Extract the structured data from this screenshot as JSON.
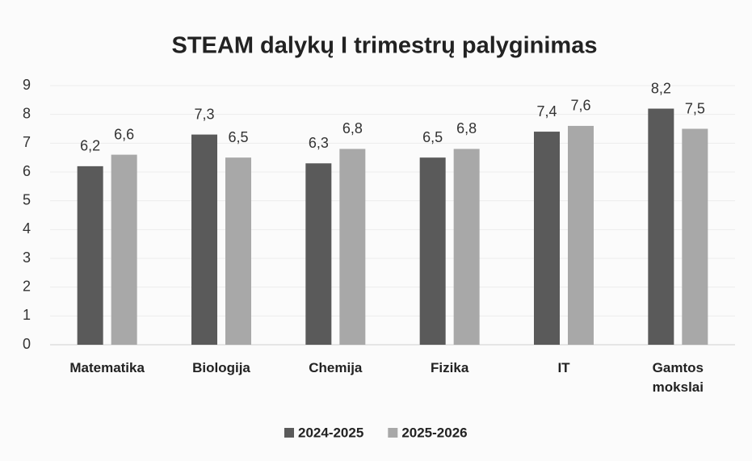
{
  "chart_data": {
    "type": "bar",
    "title": "STEAM dalykų I trimestrų palyginimas",
    "categories": [
      "Matematika",
      "Biologija",
      "Chemija",
      "Fizika",
      "IT",
      "Gamtos mokslai"
    ],
    "series": [
      {
        "name": "2024-2025",
        "color": "#5a5a5a",
        "values": [
          6.2,
          7.3,
          6.3,
          6.5,
          7.4,
          8.2
        ],
        "value_labels": [
          "6,2",
          "7,3",
          "6,3",
          "6,5",
          "7,4",
          "8,2"
        ]
      },
      {
        "name": "2025-2026",
        "color": "#a8a8a8",
        "values": [
          6.6,
          6.5,
          6.8,
          6.8,
          7.6,
          7.5
        ],
        "value_labels": [
          "6,6",
          "6,5",
          "6,8",
          "6,8",
          "7,6",
          "7,5"
        ]
      }
    ],
    "ylim": [
      0,
      9
    ],
    "yticks": [
      0,
      1,
      2,
      3,
      4,
      5,
      6,
      7,
      8,
      9
    ],
    "grid": true,
    "legend": "bottom"
  }
}
